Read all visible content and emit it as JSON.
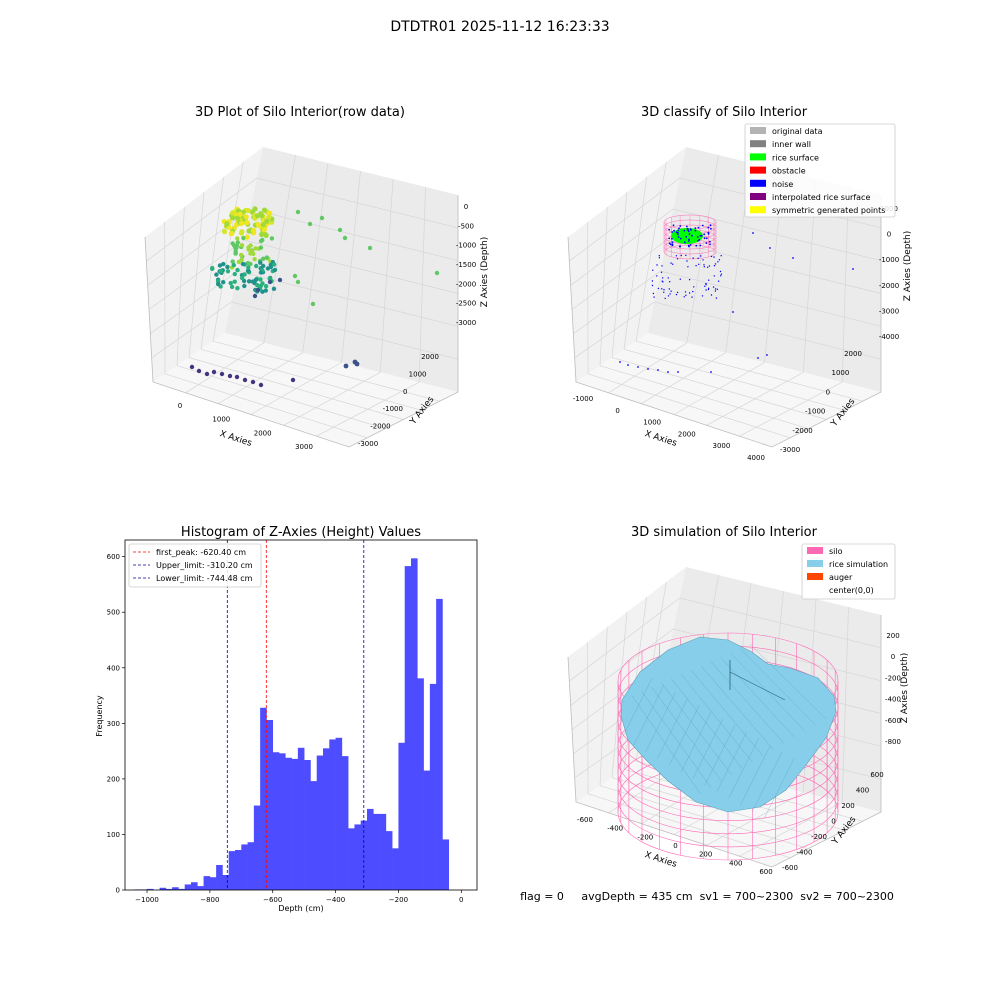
{
  "figure_title": "DTDTR01 2025-11-12 16:23:33",
  "footer_text": "flag = 0     avgDepth = 435 cm  sv1 = 700~2300  sv2 = 700~2300",
  "colors": {
    "histogram_bar": "#4d4dff",
    "first_peak_line": "#ff0000",
    "limit_line": "#0000aa",
    "silo_wire": "#ff69b4",
    "rice": "#87ceeb"
  },
  "chart_data": [
    {
      "type": "scatter",
      "subtype": "3d",
      "title": "3D Plot of Silo Interior(row data)",
      "xlabel": "X Axies",
      "ylabel": "Y Axies",
      "zlabel": "Z Axies (Depth)",
      "x_ticks": [
        "0",
        "1000",
        "2000",
        "3000"
      ],
      "y_ticks": [
        "-3000",
        "-2000",
        "-1000",
        "0",
        "1000",
        "2000"
      ],
      "z_ticks": [
        "-3000",
        "-2500",
        "-2000",
        "-1500",
        "-1000",
        "-500",
        "0"
      ],
      "colormap": "viridis"
    },
    {
      "type": "scatter",
      "subtype": "3d",
      "title": "3D classify of Silo Interior",
      "xlabel": "X Axies",
      "ylabel": "Y Axies",
      "zlabel": "Z Axies (Depth)",
      "x_ticks": [
        "-1000",
        "0",
        "1000",
        "2000",
        "3000",
        "4000"
      ],
      "y_ticks": [
        "-3000",
        "-2000",
        "-1000",
        "0",
        "1000",
        "2000"
      ],
      "z_ticks": [
        "-4000",
        "-3000",
        "-2000",
        "-1000",
        "0",
        "1000"
      ],
      "legend_position": "top-right",
      "legend": [
        {
          "label": "original data",
          "color": "#b3b3b3"
        },
        {
          "label": "inner wall",
          "color": "#808080"
        },
        {
          "label": "rice surface",
          "color": "#00ff00"
        },
        {
          "label": "obstacle",
          "color": "#ff0000"
        },
        {
          "label": "noise",
          "color": "#0000ff"
        },
        {
          "label": "interpolated rice surface",
          "color": "#800080"
        },
        {
          "label": "symmetric generated points",
          "color": "#ffff00"
        }
      ]
    },
    {
      "type": "bar",
      "subtype": "histogram",
      "title": "Histogram of Z-Axies (Height) Values",
      "xlabel": "Depth (cm)",
      "ylabel": "Frequency",
      "xlim": [
        -1070,
        50
      ],
      "ylim": [
        0,
        630
      ],
      "x_ticks": [
        "-1000",
        "-800",
        "-600",
        "-400",
        "-200",
        "0"
      ],
      "y_ticks": [
        "0",
        "100",
        "200",
        "300",
        "400",
        "500",
        "600"
      ],
      "bin_width": 20,
      "bin_start": -1040,
      "values": [
        1,
        1,
        2,
        0,
        4,
        2,
        5,
        2,
        10,
        14,
        7,
        25,
        23,
        45,
        27,
        70,
        72,
        82,
        86,
        152,
        328,
        306,
        248,
        246,
        238,
        236,
        256,
        234,
        196,
        242,
        255,
        271,
        274,
        241,
        111,
        118,
        125,
        146,
        137,
        137,
        106,
        75,
        265,
        583,
        597,
        381,
        215,
        371,
        524,
        91
      ],
      "vlines": [
        {
          "label": "first_peak: -620.40 cm",
          "x": -620.4,
          "color": "#ff0000"
        },
        {
          "label": "Upper_limit: -310.20 cm",
          "x": -310.2,
          "color": "#0000aa"
        },
        {
          "label": "Lower_limit: -744.48 cm",
          "x": -744.48,
          "color": "#0000aa"
        }
      ],
      "legend_position": "top-left"
    },
    {
      "type": "surface",
      "subtype": "3d",
      "title": "3D simulation of Silo Interior",
      "xlabel": "X Axies",
      "ylabel": "Y Axies",
      "zlabel": "Z Axies (Depth)",
      "x_ticks": [
        "-600",
        "-400",
        "-200",
        "0",
        "200",
        "400",
        "600"
      ],
      "y_ticks": [
        "-600",
        "-400",
        "-200",
        "0",
        "200",
        "400",
        "600"
      ],
      "z_ticks": [
        "-800",
        "-600",
        "-400",
        "-200",
        "0",
        "200"
      ],
      "legend_position": "top-right",
      "legend": [
        {
          "label": "silo",
          "color": "#ff69b4"
        },
        {
          "label": "rice simulation",
          "color": "#87ceeb"
        },
        {
          "label": "auger",
          "color": "#ff4500"
        },
        {
          "label": "center(0,0)",
          "color": ""
        }
      ]
    }
  ]
}
